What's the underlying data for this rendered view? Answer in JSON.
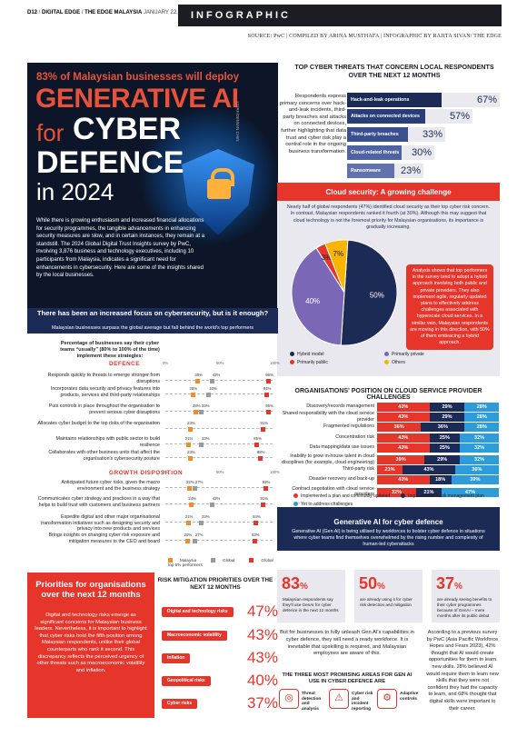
{
  "header": {
    "page": "D12",
    "section": "DIGITAL EDGE",
    "paper": "THE EDGE MALAYSIA",
    "date": "JANUARY 22, 2024",
    "label": "INFOGRAPHIC"
  },
  "source": "SOURCE: PwC  |  COMPILED BY ARINA MUSTHAFA  |  INFOGRAPHIC BY RAJITA SIVAN/ THE EDGE",
  "hero": {
    "subtitle": "83% of Malaysian businesses will deploy",
    "line1": "GENERATIVE AI",
    "for": "for",
    "cyber": "CYBER",
    "defence": "DEFENCE",
    "year": "in 2024",
    "credit": "123RF/DEMIAN CHIN",
    "body": "While there is growing enthusiasm and increased financial allocations for security programmes, the tangible advancements in enhancing security measures are slow, and in certain instances, they remain at a standstill. The 2024 Global Digital Trust Insights survey by PwC, involving 3,876 business and technology executives, including 10 participants from Malaysia, indicates a significant need for enhancements in cybersecurity. Here are some of the insights shared by the local businesses."
  },
  "threats": {
    "title": "TOP CYBER THREATS THAT CONCERN LOCAL RESPONDENTS OVER THE NEXT 12 MONTHS",
    "desc": "Respondents express primary concerns over hack-and-leak incidents, third-party breaches and attacks on connected devices, further highlighting that data trust and cyber risk play a central role in the ongoing business transformation.",
    "items": [
      {
        "label": "Hack-and-leak operations",
        "pct": "67%",
        "value": 67,
        "color": "#1c2b55"
      },
      {
        "label": "Attacks on connected devices",
        "pct": "57%",
        "value": 57,
        "color": "#2a3d77"
      },
      {
        "label": "Third-party breaches",
        "pct": "33%",
        "value": 33,
        "color": "#3a4f8f"
      },
      {
        "label": "Cloud-related threats",
        "pct": "30%",
        "value": 30,
        "color": "#4f62a1"
      },
      {
        "label": "Ransomware",
        "pct": "23%",
        "value": 23,
        "color": "#6272ad"
      }
    ]
  },
  "cloud": {
    "title": "Cloud security: A growing challenge",
    "text": "Nearly half of global respondents (47%) identified cloud security as their top cyber risk concern. In contrast, Malaysian respondents ranked it fourth (at 30%). Although this may suggest that cloud technology is not the foremost priority for Malaysian organisations, its importance is gradually increasing.",
    "note": "Analysis shows that top performers in the survey tend to adopt a hybrid approach involving both public and private providers. They also implement agile, regularly updated plans to effectively address challenges associated with hyperscale cloud services. In a similar vein, Malaysian respondents are moving in this direction, with 50% of them embracing a hybrid approach.",
    "legend": [
      "Hybrid model",
      "Primarily private",
      "Primarily public",
      "Others"
    ]
  },
  "chart_data": [
    {
      "type": "pie",
      "title": "Cloud security: A growing challenge",
      "slices": [
        {
          "name": "Hybrid model",
          "value": 50,
          "label": "50%",
          "color": "#1c2b55"
        },
        {
          "name": "Primarily private",
          "value": 40,
          "label": "40%",
          "color": "#7a67b5"
        },
        {
          "name": "Primarily public",
          "value": 3,
          "label": "3%",
          "color": "#e6352b"
        },
        {
          "name": "Others",
          "value": 7,
          "label": "7%",
          "color": "#f7b500"
        }
      ]
    },
    {
      "type": "scatter",
      "title": "Percentage of businesses say their cyber teams “usually” (80% to 100% of the time) implement these strategies:",
      "series_names": [
        "Malaysia",
        "Global",
        "Global top 5% performers"
      ],
      "series_colors": [
        "#f28c28",
        "#9a9a9a",
        "#e6352b"
      ],
      "xlim": [
        0,
        100
      ],
      "ticks": [
        "0%",
        "50%",
        "100%"
      ],
      "sections": [
        {
          "name": "DEFENCE",
          "rows": [
            {
              "label": "Responds quickly to threats to emerge stronger from disruptions",
              "values": [
                30,
                43,
                96
              ]
            },
            {
              "label": "Incorporates data security and privacy features into products, services and third-party relationships",
              "values": [
                25,
                40,
                94
              ]
            },
            {
              "label": "Puts controls in place throughout the organisation to prevent serious cyber disruptions",
              "values": [
                28,
                33,
                96
              ]
            },
            {
              "label": "Allocates cyber budget to the top risks of the organisation",
              "values": [
                23,
                null,
                91
              ]
            },
            {
              "label": "Maintains relationships with public sector to build resilience",
              "values": [
                21,
                33,
                85
              ]
            },
            {
              "label": "Collaborates with other business units that affect the organisation's cybersecurity posture",
              "values": [
                23,
                null,
                88
              ]
            }
          ]
        },
        {
          "name": "GROWTH DISPOSITION",
          "rows": [
            {
              "label": "Anticipated future cyber risks, given the macro environment and the business strategy",
              "values": [
                22,
                27,
                93
              ]
            },
            {
              "label": "Communicates cyber strategy and practices in a way that helps to build trust with customers and business partners",
              "values": [
                24,
                43,
                91
              ]
            },
            {
              "label": "Expedite digital and other major organisational transformation initiatives such as designing security and privacy into new products and services",
              "values": [
                21,
                33,
                84
              ]
            },
            {
              "label": "Brings insights on changing cyber risk exposure and mitigation measures to the CEO and board",
              "values": [
                20,
                27,
                83
              ]
            }
          ]
        }
      ]
    },
    {
      "type": "bar",
      "stacked": true,
      "title": "ORGANISATIONS' POSITION ON CLOUD SERVICE PROVIDER CHALLENGES",
      "series": [
        {
          "name": "Implemented a plan and continually updated",
          "color": "#e6352b"
        },
        {
          "name": "Implemented a risk management plan",
          "color": "#1c2b55"
        },
        {
          "name": "Yet to address challenges",
          "color": "#2d9cdb"
        }
      ],
      "rows": [
        {
          "label": "Discovery/records management",
          "values": [
            43,
            29,
            28
          ]
        },
        {
          "label": "Shared responsibility with the cloud service provider",
          "values": [
            43,
            29,
            28
          ]
        },
        {
          "label": "Fragmented regulations",
          "values": [
            36,
            36,
            28
          ]
        },
        {
          "label": "Concentration risk",
          "values": [
            43,
            25,
            32
          ]
        },
        {
          "label": "Data mapping/data use issues",
          "values": [
            43,
            25,
            32
          ]
        },
        {
          "label": "Inability to grow in-house talent in cloud disciplines (for example, cloud engineering)",
          "values": [
            39,
            29,
            32
          ]
        },
        {
          "label": "Third-party risk",
          "values": [
            21,
            43,
            36
          ]
        },
        {
          "label": "Disaster recovery and back-up",
          "values": [
            43,
            18,
            39
          ]
        },
        {
          "label": "Contract negotiation with cloud service providers",
          "values": [
            32,
            21,
            47
          ]
        }
      ]
    },
    {
      "type": "bar",
      "title": "RISK MITIGATION PRIORITIES OVER THE NEXT 12 MONTHS",
      "categories": [
        "Digital and technology risks",
        "Macroeconomic volatility",
        "Inflation",
        "Geopolitical risks",
        "Cyber risks"
      ],
      "values": [
        47,
        43,
        43,
        40,
        37
      ]
    }
  ],
  "focus": {
    "title": "There has been an increased focus on cybersecurity, but is it enough?",
    "subtitle": "Malaysian businesses surpass the global average but fall behind the world's top performers",
    "legend": [
      "Malaysia",
      "Global",
      "Global top 5% performers"
    ]
  },
  "cp": {
    "title": "ORGANISATIONS' POSITION ON CLOUD SERVICE PROVIDER CHALLENGES"
  },
  "genai": {
    "title": "Generative AI for cyber defence",
    "text": "Generative AI (Gen AI) is being utilised by workforces to bolster cyber defence in situations where cyber teams find themselves overwhelmed by the rising number and complexity of human-led cyberattacks",
    "stats": [
      {
        "num": "83",
        "pct": "%",
        "text": "Malaysian respondents say they'll use GenAI for cyber defence in the next 12 months"
      },
      {
        "num": "50",
        "pct": "%",
        "text": "are already using it for cyber risk detection and mitigation"
      },
      {
        "num": "37",
        "pct": "%",
        "text": "are already seeing benefits to their cyber programmes because of GenAI – mere months after its public debut"
      }
    ],
    "para": "But for businesses to fully unleash Gen AI's capabilities in cyber defence, they will need a ready workforce. It is inevitable that upskilling is required, and Malaysian employees are aware of this.",
    "areas_title": "THE THREE MOST PROMISING AREAS FOR GEN AI USE IN CYBER DEFENCE ARE",
    "areas": [
      "Threat detection and analysis",
      "Cyber risk and incident reporting",
      "Adaptive controls"
    ],
    "survey": "According to a previous survey by PwC (Asia Pacific Workforce Hopes and Fears 2023), 42% thought that AI would create opportunities for them to learn new skills. 28% believed AI would require them to learn new skills that they were not confident they had the capacity to learn, and 68% thought that digital skills were important to their career."
  },
  "priorities": {
    "title": "Priorities for organisations over the next 12 months",
    "text": "Digital and technology risks emerge as significant concerns for Malaysian business leaders. Nevertheless, it is important to highlight that cyber risks hold the fifth position among Malaysian respondents, unlike their global counterparts who rank it second. This discrepancy reflects the perceived urgency of other threats such as macroeconomic volatility and inflation.",
    "rm_title": "RISK MITIGATION PRIORITIES OVER THE NEXT 12 MONTHS",
    "items": [
      {
        "label": "Digital and technology risks",
        "pct": "47%"
      },
      {
        "label": "Macroeconomic volatility",
        "pct": "43%"
      },
      {
        "label": "Inflation",
        "pct": "43%"
      },
      {
        "label": "Geopolitical risks",
        "pct": "40%"
      },
      {
        "label": "Cyber risks",
        "pct": "37%"
      }
    ]
  }
}
